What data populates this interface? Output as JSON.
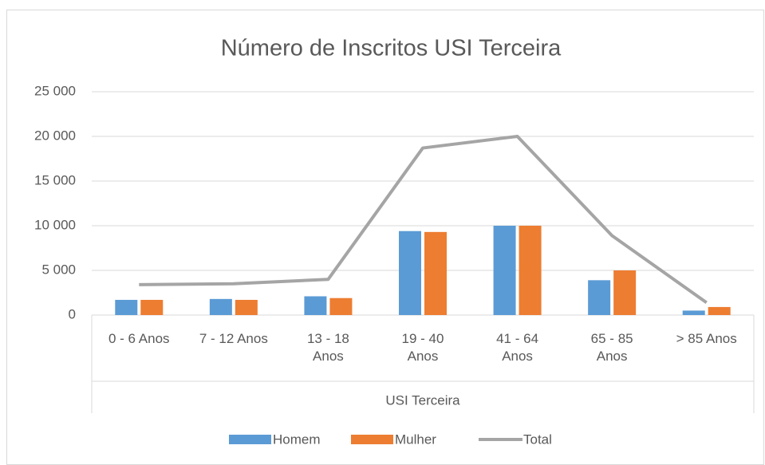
{
  "chart_data": {
    "type": "bar",
    "title": "Número de Inscritos USI Terceira",
    "x_label": "USI Terceira",
    "categories": [
      "0 - 6 Anos",
      "7 - 12 Anos",
      "13 - 18 Anos",
      "19 - 40 Anos",
      "41 - 64 Anos",
      "65 - 85 Anos",
      "> 85 Anos"
    ],
    "series": [
      {
        "name": "Homem",
        "color": "#5b9bd5",
        "kind": "bar",
        "values": [
          1700,
          1800,
          2100,
          9400,
          10000,
          3900,
          500
        ]
      },
      {
        "name": "Mulher",
        "color": "#ed7d31",
        "kind": "bar",
        "values": [
          1700,
          1700,
          1900,
          9300,
          10000,
          5000,
          900
        ]
      },
      {
        "name": "Total",
        "color": "#a5a5a5",
        "kind": "line",
        "values": [
          3400,
          3500,
          4000,
          18700,
          20000,
          8900,
          1400
        ]
      }
    ],
    "ylim": [
      0,
      25000
    ],
    "yticks": [
      0,
      {
        "value": 5000,
        "label": "5 000"
      },
      {
        "value": 10000,
        "label": "10 000"
      },
      {
        "value": 15000,
        "label": "15 000"
      },
      {
        "value": 20000,
        "label": "20 000"
      },
      {
        "value": 25000,
        "label": "25 000"
      }
    ],
    "grid": true,
    "legend": "bottom"
  }
}
